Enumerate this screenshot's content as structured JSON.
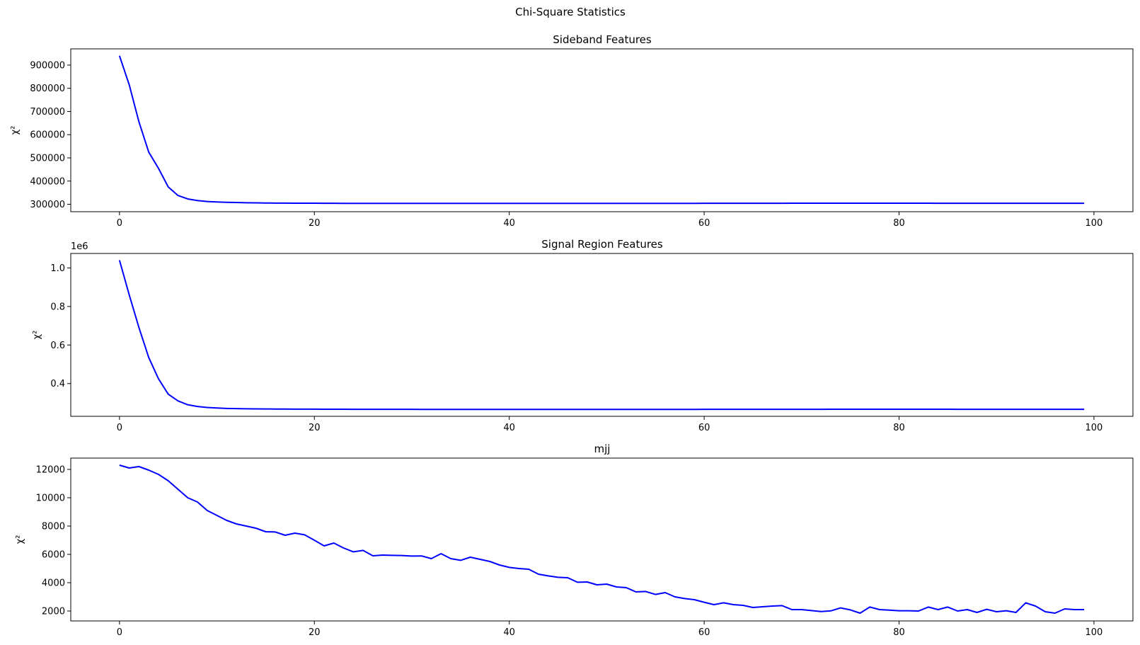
{
  "figure_title": "Chi-Square Statistics",
  "colors": {
    "line": "#0000ff",
    "axes": "#000000",
    "background": "#ffffff"
  },
  "chart_data": [
    {
      "type": "line",
      "title": "Sideband Features",
      "xlabel": "",
      "ylabel": "χ²",
      "xlim": [
        -5,
        104
      ],
      "ylim": [
        268000,
        970000
      ],
      "x_ticks": [
        0,
        20,
        40,
        60,
        80,
        100
      ],
      "y_ticks": [
        300000,
        400000,
        500000,
        600000,
        700000,
        800000,
        900000
      ],
      "y_tick_labels": [
        "300000",
        "400000",
        "500000",
        "600000",
        "700000",
        "800000",
        "900000"
      ],
      "y_offset_label": "",
      "grid": false,
      "legend": "none",
      "series": [
        {
          "x": [
            0,
            1,
            2,
            3,
            4,
            5,
            6,
            7,
            8,
            9,
            10,
            11,
            12,
            13,
            14,
            15,
            16,
            17,
            18,
            19,
            20,
            21,
            22,
            23,
            24,
            25,
            26,
            27,
            28,
            29,
            30,
            31,
            32,
            33,
            34,
            35,
            36,
            37,
            38,
            39,
            40,
            41,
            42,
            43,
            44,
            45,
            46,
            47,
            48,
            49,
            50,
            51,
            52,
            53,
            54,
            55,
            56,
            57,
            58,
            59,
            60,
            61,
            62,
            63,
            64,
            65,
            66,
            67,
            68,
            69,
            70,
            71,
            72,
            73,
            74,
            75,
            76,
            77,
            78,
            79,
            80,
            81,
            82,
            83,
            84,
            85,
            86,
            87,
            88,
            89,
            90,
            91,
            92,
            93,
            94,
            95,
            96,
            97,
            98,
            99
          ],
          "values": [
            940000,
            815000,
            655000,
            525000,
            455000,
            375000,
            338000,
            323000,
            316000,
            312000,
            310000,
            308500,
            307500,
            306500,
            306000,
            305500,
            305000,
            305000,
            304800,
            304500,
            304500,
            304300,
            304200,
            304000,
            304000,
            304000,
            304000,
            304000,
            304000,
            304000,
            304000,
            304000,
            304000,
            304000,
            304000,
            304000,
            304000,
            304000,
            304000,
            304000,
            304000,
            304000,
            304000,
            304000,
            304000,
            304000,
            304000,
            304000,
            304000,
            304000,
            304000,
            304000,
            304000,
            304000,
            304000,
            304000,
            304000,
            304000,
            304000,
            304000,
            304200,
            304200,
            304200,
            304300,
            304300,
            304300,
            304400,
            304400,
            304400,
            304500,
            304500,
            304500,
            304600,
            304600,
            304600,
            304600,
            304600,
            304600,
            304600,
            304600,
            304600,
            304500,
            304500,
            304500,
            304400,
            304400,
            304300,
            304300,
            304200,
            304200,
            304200,
            304200,
            304200,
            304200,
            304200,
            304200,
            304200,
            304200,
            304200,
            304200
          ]
        }
      ]
    },
    {
      "type": "line",
      "title": "Signal Region Features",
      "xlabel": "",
      "ylabel": "χ²",
      "xlim": [
        -5,
        104
      ],
      "ylim": [
        0.23,
        1.075
      ],
      "x_ticks": [
        0,
        20,
        40,
        60,
        80,
        100
      ],
      "y_ticks": [
        0.4,
        0.6,
        0.8,
        1.0
      ],
      "y_tick_labels": [
        "0.4",
        "0.6",
        "0.8",
        "1.0"
      ],
      "y_offset_label": "1e6",
      "grid": false,
      "legend": "none",
      "series": [
        {
          "x": [
            0,
            1,
            2,
            3,
            4,
            5,
            6,
            7,
            8,
            9,
            10,
            11,
            12,
            13,
            14,
            15,
            16,
            17,
            18,
            19,
            20,
            21,
            22,
            23,
            24,
            25,
            26,
            27,
            28,
            29,
            30,
            31,
            32,
            33,
            34,
            35,
            36,
            37,
            38,
            39,
            40,
            41,
            42,
            43,
            44,
            45,
            46,
            47,
            48,
            49,
            50,
            51,
            52,
            53,
            54,
            55,
            56,
            57,
            58,
            59,
            60,
            61,
            62,
            63,
            64,
            65,
            66,
            67,
            68,
            69,
            70,
            71,
            72,
            73,
            74,
            75,
            76,
            77,
            78,
            79,
            80,
            81,
            82,
            83,
            84,
            85,
            86,
            87,
            88,
            89,
            90,
            91,
            92,
            93,
            94,
            95,
            96,
            97,
            98,
            99
          ],
          "values": [
            1.04,
            0.86,
            0.69,
            0.535,
            0.425,
            0.345,
            0.31,
            0.29,
            0.281,
            0.276,
            0.273,
            0.271,
            0.27,
            0.269,
            0.2685,
            0.268,
            0.2678,
            0.2675,
            0.2673,
            0.2671,
            0.267,
            0.2668,
            0.2667,
            0.2666,
            0.2665,
            0.2664,
            0.2663,
            0.2662,
            0.2662,
            0.2661,
            0.2661,
            0.266,
            0.266,
            0.266,
            0.266,
            0.266,
            0.266,
            0.266,
            0.266,
            0.266,
            0.266,
            0.266,
            0.266,
            0.266,
            0.266,
            0.266,
            0.266,
            0.266,
            0.266,
            0.266,
            0.266,
            0.266,
            0.266,
            0.266,
            0.266,
            0.266,
            0.266,
            0.266,
            0.266,
            0.266,
            0.2661,
            0.2661,
            0.2661,
            0.2662,
            0.2662,
            0.2662,
            0.2663,
            0.2663,
            0.2663,
            0.2664,
            0.2664,
            0.2665,
            0.2665,
            0.2666,
            0.2666,
            0.2666,
            0.2667,
            0.2667,
            0.2667,
            0.2667,
            0.2667,
            0.2667,
            0.2667,
            0.2666,
            0.2666,
            0.2666,
            0.2665,
            0.2665,
            0.2665,
            0.2664,
            0.2664,
            0.2664,
            0.2663,
            0.2663,
            0.2663,
            0.2663,
            0.2663,
            0.2663,
            0.2663,
            0.2663
          ]
        }
      ]
    },
    {
      "type": "line",
      "title": "mjj",
      "xlabel": "",
      "ylabel": "χ²",
      "xlim": [
        -5,
        104
      ],
      "ylim": [
        1300,
        12800
      ],
      "x_ticks": [
        0,
        20,
        40,
        60,
        80,
        100
      ],
      "y_ticks": [
        2000,
        4000,
        6000,
        8000,
        10000,
        12000
      ],
      "y_tick_labels": [
        "2000",
        "4000",
        "6000",
        "8000",
        "10000",
        "12000"
      ],
      "y_offset_label": "",
      "grid": false,
      "legend": "none",
      "series": [
        {
          "x": [
            0,
            1,
            2,
            3,
            4,
            5,
            6,
            7,
            8,
            9,
            10,
            11,
            12,
            13,
            14,
            15,
            16,
            17,
            18,
            19,
            20,
            21,
            22,
            23,
            24,
            25,
            26,
            27,
            28,
            29,
            30,
            31,
            32,
            33,
            34,
            35,
            36,
            37,
            38,
            39,
            40,
            41,
            42,
            43,
            44,
            45,
            46,
            47,
            48,
            49,
            50,
            51,
            52,
            53,
            54,
            55,
            56,
            57,
            58,
            59,
            60,
            61,
            62,
            63,
            64,
            65,
            66,
            67,
            68,
            69,
            70,
            71,
            72,
            73,
            74,
            75,
            76,
            77,
            78,
            79,
            80,
            81,
            82,
            83,
            84,
            85,
            86,
            87,
            88,
            89,
            90,
            91,
            92,
            93,
            94,
            95,
            96,
            97,
            98,
            99
          ],
          "values": [
            12300,
            12100,
            12200,
            11950,
            11650,
            11200,
            10600,
            10000,
            9700,
            9100,
            8750,
            8400,
            8150,
            8000,
            7850,
            7600,
            7580,
            7350,
            7500,
            7380,
            7000,
            6600,
            6800,
            6450,
            6180,
            6280,
            5900,
            5950,
            5930,
            5920,
            5880,
            5890,
            5700,
            6050,
            5700,
            5580,
            5800,
            5650,
            5500,
            5250,
            5080,
            5000,
            4950,
            4600,
            4480,
            4380,
            4350,
            4030,
            4050,
            3850,
            3900,
            3700,
            3650,
            3350,
            3380,
            3170,
            3300,
            3000,
            2880,
            2800,
            2620,
            2450,
            2580,
            2450,
            2400,
            2250,
            2300,
            2350,
            2380,
            2100,
            2100,
            2030,
            1960,
            2010,
            2220,
            2080,
            1850,
            2280,
            2100,
            2060,
            2020,
            2020,
            2000,
            2280,
            2100,
            2280,
            2000,
            2100,
            1900,
            2120,
            1950,
            2020,
            1900,
            2580,
            2350,
            1950,
            1850,
            2150,
            2100,
            2100
          ]
        }
      ]
    }
  ]
}
